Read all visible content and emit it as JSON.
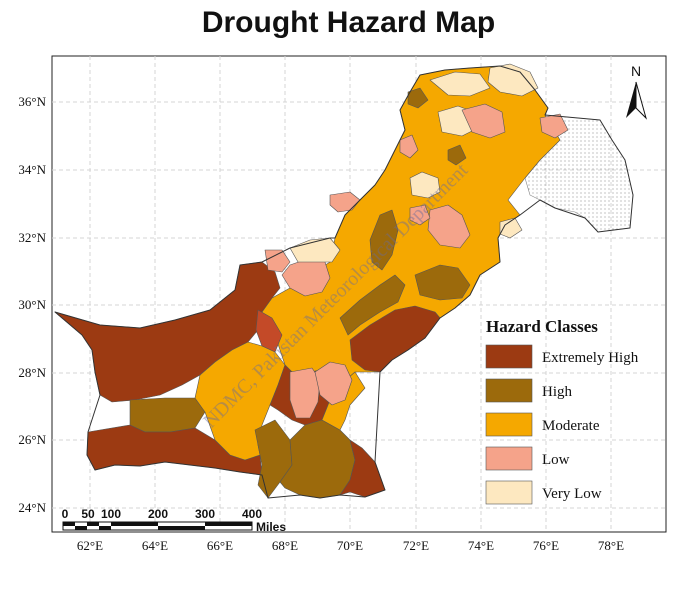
{
  "title": "Drought Hazard Map",
  "north_arrow_label": "N",
  "watermark": "NDMC, Pakistan Meteorological Department",
  "axes": {
    "lat_ticks": [
      "24°N",
      "26°N",
      "28°N",
      "30°N",
      "32°N",
      "34°N",
      "36°N"
    ],
    "lon_ticks": [
      "62°E",
      "64°E",
      "66°E",
      "68°E",
      "70°E",
      "72°E",
      "74°E",
      "76°E",
      "78°E"
    ]
  },
  "scale_bar": {
    "labels": [
      "0",
      "50",
      "100",
      "200",
      "300",
      "400"
    ],
    "unit": "Miles"
  },
  "legend": {
    "title": "Hazard Classes",
    "items": [
      {
        "label": "Extremely High",
        "color": "#9c3a12"
      },
      {
        "label": "High",
        "color": "#9c6a0c"
      },
      {
        "label": "Moderate",
        "color": "#f5a800"
      },
      {
        "label": "Low",
        "color": "#f5a38a"
      },
      {
        "label": "Very Low",
        "color": "#fde8c0"
      }
    ]
  },
  "colors": {
    "extremely_high": "#9c3a12",
    "high": "#9c6a0c",
    "moderate": "#f5a800",
    "low": "#f5a38a",
    "very_low": "#fde8c0",
    "no_data": "#ffffff"
  }
}
